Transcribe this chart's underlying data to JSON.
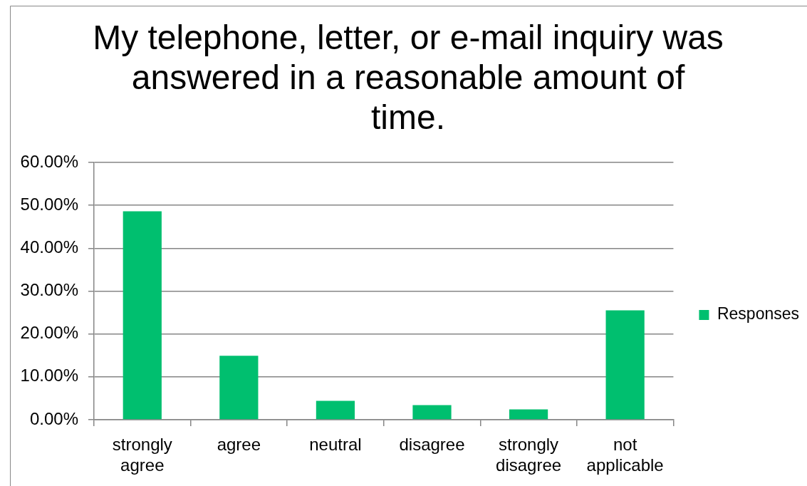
{
  "chart_data": {
    "type": "bar",
    "title": "My telephone, letter, or e-mail inquiry was answered in a reasonable amount of time.",
    "categories": [
      "strongly agree",
      "agree",
      "neutral",
      "disagree",
      "strongly disagree",
      "not applicable"
    ],
    "series": [
      {
        "name": "Responses",
        "color": "#00bf6f",
        "values": [
          48.6,
          14.9,
          4.4,
          3.4,
          2.4,
          25.5
        ]
      }
    ],
    "ylim": [
      0,
      60
    ],
    "yticks": [
      {
        "value": 0,
        "label": "0.00%"
      },
      {
        "value": 10,
        "label": "10.00%"
      },
      {
        "value": 20,
        "label": "20.00%"
      },
      {
        "value": 30,
        "label": "30.00%"
      },
      {
        "value": 40,
        "label": "40.00%"
      },
      {
        "value": 50,
        "label": "50.00%"
      },
      {
        "value": 60,
        "label": "60.00%"
      }
    ],
    "grid": "y",
    "legend": "right"
  }
}
